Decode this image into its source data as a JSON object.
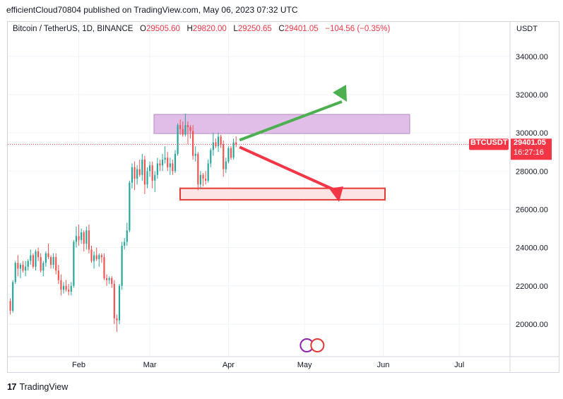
{
  "header": {
    "publisher_line": "efficientCloud70804 published on TradingView.com, May 06, 2023 07:32 UTC"
  },
  "legend": {
    "symbol": "Bitcoin / TetherUS, 1D, BINANCE",
    "o_label": "O",
    "o_value": "29505.60",
    "h_label": "H",
    "h_value": "29820.00",
    "l_label": "L",
    "l_value": "29250.65",
    "c_label": "C",
    "c_value": "29401.05",
    "change": "−104.56 (−0.35%)"
  },
  "currency": "USDT",
  "price_tag": {
    "symbol": "BTCUSDT",
    "price": "29401.05",
    "countdown": "16:27:16"
  },
  "footer": {
    "brand": "TradingView"
  },
  "colors": {
    "up": "#26a69a",
    "down": "#ef5350",
    "grid": "#f0f3fa",
    "resistance_fill": "#e1bee7",
    "support_fill": "#fce4e4",
    "support_line": "#e53935",
    "arrow_up": "#4caf50",
    "arrow_down": "#f23645"
  },
  "chart_data": {
    "type": "candlestick",
    "symbol": "BTCUSDT",
    "interval": "1D",
    "ylim": [
      18300,
      35800
    ],
    "y_ticks": [
      "20000.00",
      "22000.00",
      "24000.00",
      "26000.00",
      "28000.00",
      "30000.00",
      "32000.00",
      "34000.00"
    ],
    "x_ticks": [
      {
        "date": "2023-02-01",
        "label": "Feb"
      },
      {
        "date": "2023-03-01",
        "label": "Mar"
      },
      {
        "date": "2023-04-01",
        "label": "Apr"
      },
      {
        "date": "2023-05-01",
        "label": "May"
      },
      {
        "date": "2023-06-01",
        "label": "Jun"
      },
      {
        "date": "2023-07-01",
        "label": "Jul"
      }
    ],
    "x_range": [
      "2023-01-04",
      "2023-07-21"
    ],
    "first_date": "2023-01-05",
    "candles": [
      [
        21200,
        21350,
        20500,
        20700
      ],
      [
        20700,
        22300,
        20600,
        22200
      ],
      [
        22200,
        23300,
        22100,
        23200
      ],
      [
        23200,
        23600,
        22500,
        22900
      ],
      [
        22900,
        23200,
        22400,
        23100
      ],
      [
        23100,
        23300,
        22700,
        22800
      ],
      [
        22800,
        23300,
        22500,
        23000
      ],
      [
        23000,
        23400,
        22800,
        23300
      ],
      [
        23300,
        23900,
        23100,
        23600
      ],
      [
        23600,
        23700,
        22900,
        23000
      ],
      [
        23000,
        23900,
        22800,
        23800
      ],
      [
        23800,
        24000,
        23300,
        23500
      ],
      [
        23500,
        23700,
        22700,
        22800
      ],
      [
        22800,
        23300,
        22500,
        23200
      ],
      [
        23200,
        23800,
        23000,
        23700
      ],
      [
        23700,
        24200,
        23400,
        23500
      ],
      [
        23500,
        23600,
        22900,
        23100
      ],
      [
        23100,
        23700,
        22900,
        23500
      ],
      [
        23500,
        23700,
        22600,
        22800
      ],
      [
        22800,
        23100,
        22100,
        22300
      ],
      [
        22300,
        22600,
        21500,
        21800
      ],
      [
        21800,
        22200,
        21600,
        22000
      ],
      [
        22000,
        22300,
        21700,
        21800
      ],
      [
        21800,
        22100,
        21500,
        21700
      ],
      [
        21700,
        22200,
        21500,
        22000
      ],
      [
        22000,
        24400,
        21900,
        24300
      ],
      [
        24300,
        25100,
        24000,
        24600
      ],
      [
        24600,
        25200,
        24100,
        24400
      ],
      [
        24400,
        25000,
        24200,
        24800
      ],
      [
        24800,
        24900,
        23800,
        24200
      ],
      [
        24200,
        25100,
        23900,
        24900
      ],
      [
        24900,
        25200,
        23700,
        23900
      ],
      [
        23900,
        24100,
        23200,
        23300
      ],
      [
        23300,
        23800,
        22900,
        23600
      ],
      [
        23600,
        24000,
        23300,
        23400
      ],
      [
        23400,
        23700,
        23000,
        23600
      ],
      [
        23600,
        23700,
        23200,
        23500
      ],
      [
        23500,
        23700,
        22300,
        22400
      ],
      [
        22400,
        22600,
        22000,
        22300
      ],
      [
        22300,
        22500,
        22100,
        22400
      ],
      [
        22400,
        22500,
        21900,
        22100
      ],
      [
        22100,
        22300,
        20000,
        20300
      ],
      [
        20300,
        20500,
        19600,
        20200
      ],
      [
        20200,
        22100,
        20000,
        22000
      ],
      [
        22000,
        24300,
        21800,
        24100
      ],
      [
        24100,
        24500,
        23900,
        24300
      ],
      [
        24300,
        25300,
        24100,
        24900
      ],
      [
        24900,
        27500,
        24800,
        27400
      ],
      [
        27400,
        28400,
        27100,
        28200
      ],
      [
        28200,
        28500,
        27000,
        27600
      ],
      [
        27600,
        28300,
        27300,
        28100
      ],
      [
        28100,
        28600,
        27700,
        27800
      ],
      [
        27800,
        28900,
        27500,
        28600
      ],
      [
        28600,
        28800,
        26800,
        27300
      ],
      [
        27300,
        28200,
        27100,
        28000
      ],
      [
        28000,
        28500,
        27700,
        28300
      ],
      [
        28300,
        28500,
        27100,
        27500
      ],
      [
        27500,
        28000,
        26900,
        27800
      ],
      [
        27800,
        28700,
        27600,
        28400
      ],
      [
        28400,
        28600,
        28000,
        28300
      ],
      [
        28300,
        28900,
        28000,
        28600
      ],
      [
        28600,
        29300,
        28400,
        28700
      ],
      [
        28700,
        29000,
        28000,
        28200
      ],
      [
        28200,
        28700,
        27800,
        28400
      ],
      [
        28400,
        28600,
        27800,
        28000
      ],
      [
        28000,
        29100,
        27900,
        28900
      ],
      [
        28900,
        30500,
        28800,
        30400
      ],
      [
        30400,
        30700,
        29900,
        30200
      ],
      [
        30200,
        30600,
        29800,
        29900
      ],
      [
        29900,
        31000,
        29800,
        30400
      ],
      [
        30400,
        30600,
        29400,
        30300
      ],
      [
        30300,
        30400,
        29700,
        30100
      ],
      [
        30100,
        30400,
        28600,
        28800
      ],
      [
        28800,
        29300,
        28500,
        28900
      ],
      [
        28900,
        29000,
        27000,
        27300
      ],
      [
        27300,
        28000,
        27100,
        27800
      ],
      [
        27800,
        27900,
        27200,
        27600
      ],
      [
        27600,
        28000,
        27300,
        27500
      ],
      [
        27500,
        28600,
        27400,
        28400
      ],
      [
        28400,
        29200,
        28200,
        29100
      ],
      [
        29100,
        30000,
        28800,
        29500
      ],
      [
        29500,
        29700,
        29200,
        29300
      ],
      [
        29300,
        30000,
        29000,
        29800
      ],
      [
        29800,
        29900,
        29200,
        29400
      ],
      [
        29400,
        29600,
        27700,
        28100
      ],
      [
        28100,
        28700,
        27900,
        28500
      ],
      [
        28500,
        29300,
        28400,
        29200
      ],
      [
        29200,
        29300,
        28600,
        28700
      ],
      [
        28700,
        29700,
        28600,
        29500
      ],
      [
        29500,
        29820,
        29250,
        29401
      ]
    ],
    "annotations": {
      "resistance_zone": [
        30000,
        31000
      ],
      "support_zone": [
        26500,
        27100
      ],
      "last_price": 29401.05
    }
  }
}
